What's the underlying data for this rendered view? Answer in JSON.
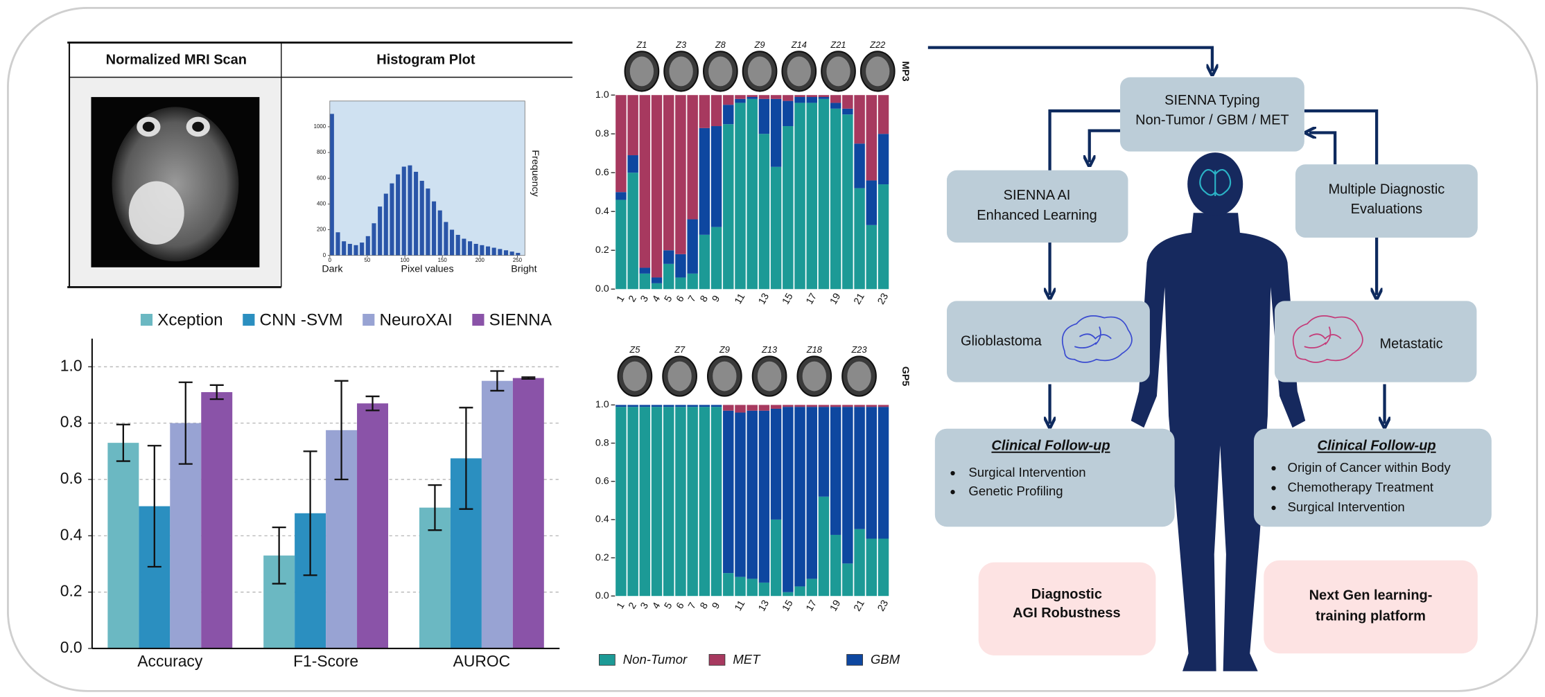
{
  "chart_data": [
    {
      "type": "bar",
      "categories": [
        "Accuracy",
        "F1-Score",
        "AUROC"
      ],
      "series": [
        {
          "name": "Xception",
          "color": "#6bb8c2",
          "values": [
            0.73,
            0.33,
            0.5
          ],
          "errors": [
            0.065,
            0.1,
            0.08
          ]
        },
        {
          "name": "CNN -SVM",
          "color": "#2b8fc0",
          "values": [
            0.505,
            0.48,
            0.675
          ],
          "errors": [
            0.215,
            0.22,
            0.18
          ]
        },
        {
          "name": "NeuroXAI",
          "color": "#98a3d3",
          "values": [
            0.8,
            0.775,
            0.95
          ],
          "errors": [
            0.145,
            0.175,
            0.035
          ]
        },
        {
          "name": "SIENNA",
          "color": "#8a53a8",
          "values": [
            0.91,
            0.87,
            0.96
          ],
          "errors": [
            0.025,
            0.025,
            0.003
          ]
        }
      ],
      "ylim": [
        0,
        1.1
      ],
      "yticks": [
        {
          "value": 0,
          "label": "0.0"
        },
        0.2,
        0.4,
        0.6,
        0.8,
        {
          "value": 1,
          "label": "1.0"
        }
      ],
      "grid": true
    },
    {
      "type": "histogram",
      "title": "Histogram Plot",
      "x_label": "Pixel values",
      "y_label": "Frequency",
      "annotations": [
        "Dark",
        "Bright"
      ],
      "bins": [
        0,
        8,
        16,
        24,
        32,
        40,
        48,
        56,
        64,
        72,
        80,
        88,
        96,
        104,
        112,
        120,
        128,
        136,
        144,
        152,
        160,
        168,
        176,
        184,
        192,
        200,
        208,
        216,
        224,
        232,
        240,
        248,
        256
      ],
      "values": [
        1100,
        180,
        110,
        90,
        80,
        100,
        150,
        250,
        380,
        480,
        560,
        630,
        690,
        700,
        650,
        580,
        520,
        420,
        350,
        260,
        200,
        160,
        130,
        110,
        90,
        80,
        70,
        60,
        50,
        40,
        30,
        20
      ],
      "color": "#2a55a8",
      "xlim": [
        0,
        260
      ],
      "xticks": [
        0,
        50,
        100,
        150,
        200,
        250
      ],
      "ylim": [
        0,
        1200
      ],
      "yticks": [
        0,
        200,
        400,
        600,
        800,
        1000
      ]
    },
    {
      "type": "stacked_bar",
      "panel_label": "MP3",
      "thumbnails": [
        "Z1",
        "Z3",
        "Z8",
        "Z9",
        "Z14",
        "Z21",
        "Z22"
      ],
      "categories": [
        "1",
        "2",
        "3",
        "4",
        "5",
        "6",
        "7",
        "8",
        "9",
        null,
        "11",
        null,
        "13",
        null,
        "15",
        null,
        "17",
        null,
        "19",
        null,
        "21",
        null,
        "23"
      ],
      "series": [
        {
          "name": "Non-Tumor",
          "color": "#1c9a96",
          "values": [
            0.46,
            0.6,
            0.08,
            0.03,
            0.13,
            0.06,
            0.08,
            0.28,
            0.32,
            0.85,
            0.96,
            0.98,
            0.8,
            0.63,
            0.84,
            0.96,
            0.96,
            0.98,
            0.93,
            0.9,
            0.52,
            0.33,
            0.54
          ]
        },
        {
          "name": "MET",
          "color": "#a7395f",
          "values": [
            0.5,
            0.31,
            0.89,
            0.94,
            0.8,
            0.82,
            0.64,
            0.17,
            0.16,
            0.05,
            0.02,
            0.01,
            0.02,
            0.02,
            0.03,
            0.01,
            0.01,
            0.01,
            0.04,
            0.07,
            0.25,
            0.44,
            0.2
          ]
        },
        {
          "name": "GBM",
          "color": "#0e47a0",
          "values": [
            0.04,
            0.09,
            0.03,
            0.03,
            0.07,
            0.12,
            0.28,
            0.55,
            0.52,
            0.1,
            0.02,
            0.01,
            0.18,
            0.35,
            0.13,
            0.03,
            0.03,
            0.01,
            0.03,
            0.03,
            0.23,
            0.23,
            0.26
          ]
        }
      ],
      "ylim": [
        0,
        1
      ],
      "yticks": [
        {
          "value": 0,
          "label": "0.0"
        },
        0.2,
        0.4,
        0.6,
        0.8,
        {
          "value": 1,
          "label": "1.0"
        }
      ]
    },
    {
      "type": "stacked_bar",
      "panel_label": "GP5",
      "thumbnails": [
        "Z5",
        "Z7",
        "Z9",
        "Z13",
        "Z18",
        "Z23"
      ],
      "categories": [
        "1",
        "2",
        "3",
        "4",
        "5",
        "6",
        "7",
        "8",
        "9",
        null,
        "11",
        null,
        "13",
        null,
        "15",
        null,
        "17",
        null,
        "19",
        null,
        "21",
        null,
        "23"
      ],
      "series": [
        {
          "color": "#1c9a96",
          "values": [
            0.99,
            0.99,
            0.99,
            0.99,
            0.99,
            0.99,
            0.99,
            0.99,
            0.99,
            0.12,
            0.1,
            0.09,
            0.07,
            0.4,
            0.02,
            0.05,
            0.09,
            0.52,
            0.32,
            0.17,
            0.35,
            0.3,
            0.3
          ]
        },
        {
          "color": "#a7395f",
          "values": [
            0,
            0,
            0,
            0,
            0,
            0,
            0,
            0,
            0,
            0.03,
            0.04,
            0.03,
            0.03,
            0.02,
            0.01,
            0.01,
            0.01,
            0.01,
            0.01,
            0.01,
            0.01,
            0.01,
            0.01
          ]
        },
        {
          "color": "#0e47a0",
          "values": [
            0.01,
            0.01,
            0.01,
            0.01,
            0.01,
            0.01,
            0.01,
            0.01,
            0.01,
            0.85,
            0.86,
            0.88,
            0.9,
            0.58,
            0.97,
            0.94,
            0.9,
            0.47,
            0.67,
            0.82,
            0.64,
            0.69,
            0.69
          ]
        }
      ],
      "ylim": [
        0,
        1
      ],
      "yticks": [
        {
          "value": 0,
          "label": "0.0"
        },
        0.2,
        0.4,
        0.6,
        0.8,
        {
          "value": 1,
          "label": "1.0"
        }
      ]
    }
  ],
  "table": {
    "headers": [
      "Normalized MRI Scan",
      "Histogram Plot"
    ]
  },
  "diagram": {
    "typing": [
      "SIENNA Typing",
      "Non-Tumor / GBM / MET"
    ],
    "ai": [
      "SIENNA AI",
      "Enhanced Learning"
    ],
    "evaluations": [
      "Multiple Diagnostic",
      "Evaluations"
    ],
    "glioblastoma": "Glioblastoma",
    "metastatic": "Metastatic",
    "followup_left": {
      "title": "Clinical Follow-up",
      "items": [
        "Surgical Intervention",
        "Genetic Profiling"
      ]
    },
    "followup_right": {
      "title": "Clinical Follow-up",
      "items": [
        "Origin of Cancer within Body",
        "Chemotherapy Treatment",
        "Surgical Intervention"
      ]
    },
    "robustness": [
      "Diagnostic",
      "AGI Robustness"
    ],
    "platform": [
      "Next Gen learning-",
      "training platform"
    ]
  }
}
